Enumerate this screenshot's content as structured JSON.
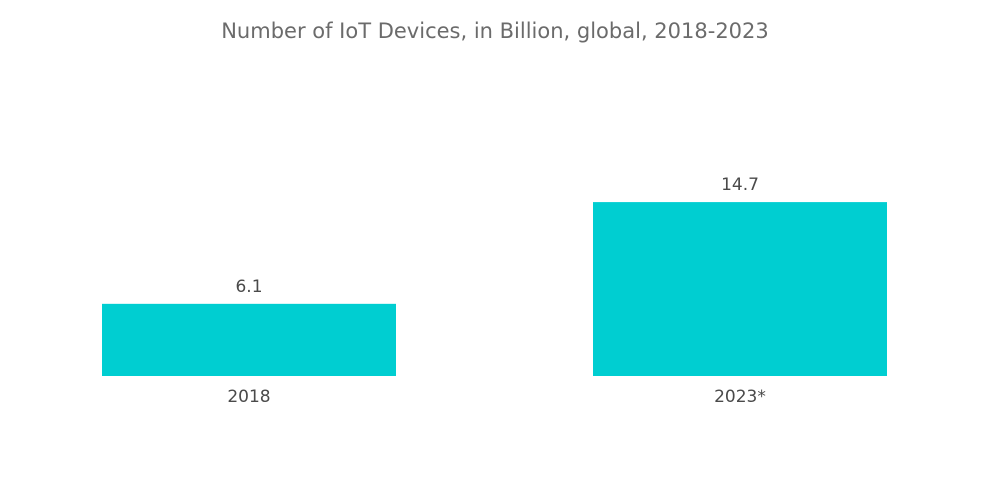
{
  "chart_data": {
    "type": "bar",
    "title": "Number of IoT Devices, in Billion, global, 2018-2023",
    "categories": [
      "2018",
      "2023*"
    ],
    "values": [
      6.1,
      14.7
    ],
    "data_labels": [
      "6.1",
      "14.7"
    ],
    "xlabel": "",
    "ylabel": "",
    "ylim": [
      0,
      14.7
    ],
    "grid": false,
    "legend": "none",
    "bar_color": "#00ced1"
  }
}
